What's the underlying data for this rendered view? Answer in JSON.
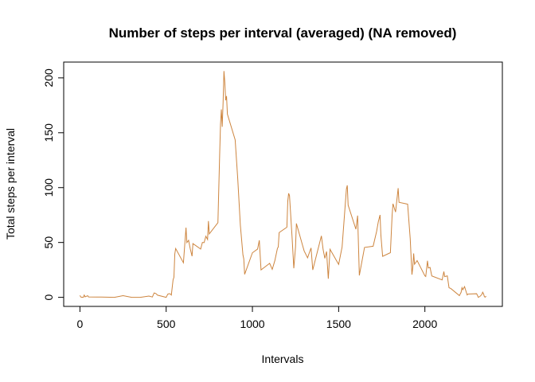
{
  "chart_data": {
    "type": "line",
    "title": "Number of steps per interval (averaged) (NA removed)",
    "x_label": "Intervals",
    "y_label": "Total steps per interval",
    "x": [
      0,
      5,
      10,
      20,
      25,
      30,
      45,
      50,
      100,
      150,
      200,
      250,
      300,
      350,
      400,
      420,
      430,
      440,
      450,
      500,
      505,
      510,
      520,
      525,
      530,
      540,
      545,
      550,
      555,
      600,
      615,
      620,
      630,
      640,
      650,
      655,
      700,
      710,
      720,
      730,
      740,
      745,
      750,
      800,
      810,
      815,
      820,
      825,
      830,
      835,
      840,
      845,
      850,
      855,
      900,
      915,
      930,
      945,
      950,
      955,
      1000,
      1030,
      1040,
      1050,
      1100,
      1115,
      1130,
      1145,
      1150,
      1155,
      1200,
      1205,
      1210,
      1215,
      1230,
      1240,
      1250,
      1255,
      1300,
      1320,
      1330,
      1340,
      1350,
      1400,
      1410,
      1420,
      1430,
      1440,
      1450,
      1500,
      1520,
      1545,
      1550,
      1555,
      1600,
      1610,
      1620,
      1650,
      1700,
      1720,
      1730,
      1740,
      1745,
      1755,
      1800,
      1810,
      1815,
      1830,
      1845,
      1850,
      1900,
      1915,
      1925,
      1930,
      1935,
      1940,
      1955,
      2000,
      2005,
      2015,
      2020,
      2030,
      2040,
      2100,
      2110,
      2115,
      2130,
      2140,
      2150,
      2200,
      2210,
      2215,
      2220,
      2230,
      2245,
      2250,
      2300,
      2310,
      2320,
      2330,
      2335,
      2340,
      2345,
      2350,
      2355
    ],
    "series": [
      {
        "name": "steps",
        "color": "#cd853f",
        "values": [
          1.7,
          0.3,
          0.1,
          0.1,
          2.1,
          0.5,
          1.5,
          0.4,
          0.3,
          0.2,
          0,
          1.5,
          0,
          0,
          1.2,
          0.3,
          4,
          3.5,
          2,
          0,
          1.6,
          3,
          3.3,
          3,
          2.1,
          16,
          18.3,
          39.5,
          44.5,
          31.5,
          63.5,
          49.9,
          52,
          44,
          37.5,
          49,
          44,
          50,
          49.9,
          55.7,
          52.7,
          69.5,
          57.8,
          68,
          129.4,
          157.5,
          171.2,
          155.4,
          177.3,
          206.2,
          195.9,
          179.6,
          183.4,
          167,
          143.5,
          108,
          66,
          38.8,
          35,
          21,
          40.6,
          44,
          52,
          25,
          31,
          25.5,
          33.4,
          44.6,
          46,
          59,
          63.9,
          87.6,
          94.8,
          92.8,
          54.8,
          26.5,
          45.9,
          67.3,
          42.3,
          36,
          40.7,
          45,
          25,
          56,
          43.6,
          35.5,
          41.8,
          17,
          43.8,
          30,
          45.9,
          98.7,
          102.1,
          84,
          62.1,
          74.5,
          20,
          45.5,
          46.6,
          60,
          68.9,
          75.1,
          56.5,
          37.4,
          40.7,
          74.7,
          85.3,
          77.7,
          99.5,
          86.6,
          84.9,
          53.4,
          20.7,
          27.4,
          40,
          30.2,
          33.5,
          19.6,
          19,
          33.3,
          26.8,
          27.3,
          19.5,
          15.9,
          23.5,
          18.9,
          19.6,
          8.7,
          8.1,
          1.6,
          4.6,
          8.8,
          7,
          9.8,
          2.2,
          3,
          3.3,
          0,
          0.97,
          2.6,
          4.7,
          3.3,
          0.6,
          0.2,
          1.1
        ]
      }
    ],
    "xlim": [
      -94.2,
      2449.2
    ],
    "ylim": [
      -8.25,
      214.4
    ],
    "xticks": [
      0,
      500,
      1000,
      1500,
      2000
    ],
    "yticks": [
      0,
      50,
      100,
      150,
      200
    ]
  }
}
